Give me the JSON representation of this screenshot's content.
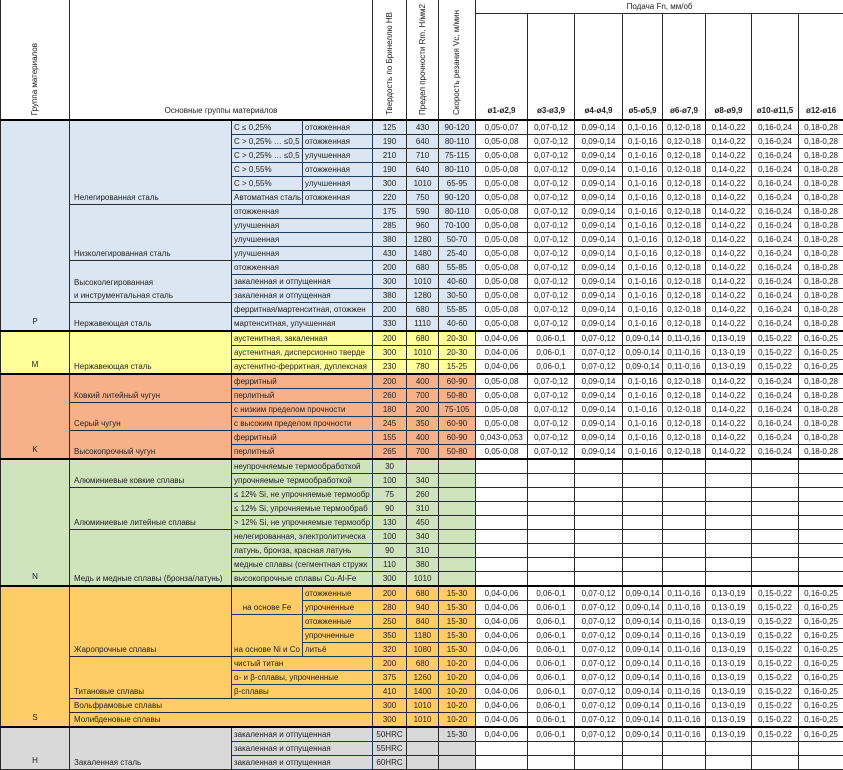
{
  "header": {
    "group_col": "Группа материалов",
    "main_col": "Основные группы материалов",
    "hb_col": "Твердость по Бринеллю HB",
    "rm_col": "Предел прочности Rm, Н/мм2",
    "vc_col": "Скорость резания Vc, м/мин",
    "feed_title": "Подача Fn, мм/об",
    "diameters": [
      "ø1-ø2,9",
      "ø3-ø3,9",
      "ø4-ø4,9",
      "ø5-ø5,9",
      "ø6-ø7,9",
      "ø8-ø9,9",
      "ø10-ø11,5",
      "ø12-ø16"
    ]
  },
  "colors": {
    "P": "#dce6f2",
    "M": "#ffff99",
    "K": "#f6b08a",
    "N": "#cfe3bd",
    "S": "#ffcc66",
    "H": "#d9d9d9"
  },
  "sections": [
    {
      "code": "P",
      "groups": [
        {
          "name": "Нелегированная сталь",
          "rows": [
            {
              "a": "C ≤ 0,25%",
              "b": "отожженная",
              "hb": "125",
              "rm": "430",
              "vc": "90-120",
              "f": [
                "0,05-0,07",
                "0,07-0,12",
                "0,09-0,14",
                "0,1-0,16",
                "0,12-0,18",
                "0,14-0,22",
                "0,16-0,24",
                "0,18-0,28"
              ]
            },
            {
              "a": "C > 0,25% … ≤0,5",
              "b": "отожженная",
              "hb": "190",
              "rm": "640",
              "vc": "80-110",
              "f": [
                "0,05-0,08",
                "0,07-0,12",
                "0,09-0,14",
                "0,1-0,16",
                "0,12-0,18",
                "0,14-0,22",
                "0,16-0,24",
                "0,18-0,28"
              ]
            },
            {
              "a": "C > 0,25% … ≤0,5",
              "b": "улучшенная",
              "hb": "210",
              "rm": "710",
              "vc": "75-115",
              "f": [
                "0,05-0,08",
                "0,07-0,12",
                "0,09-0,14",
                "0,1-0,16",
                "0,12-0,18",
                "0,14-0,22",
                "0,16-0,24",
                "0,18-0,28"
              ]
            },
            {
              "a": "C > 0,55%",
              "b": "отожженная",
              "hb": "190",
              "rm": "640",
              "vc": "80-110",
              "f": [
                "0,05-0,08",
                "0,07-0,12",
                "0,09-0,14",
                "0,1-0,16",
                "0,12-0,18",
                "0,14-0,22",
                "0,16-0,24",
                "0,18-0,28"
              ]
            },
            {
              "a": "C > 0,55%",
              "b": "улучшенная",
              "hb": "300",
              "rm": "1010",
              "vc": "65-95",
              "f": [
                "0,05-0,08",
                "0,07-0,12",
                "0,09-0,14",
                "0,1-0,16",
                "0,12-0,18",
                "0,14-0,22",
                "0,16-0,24",
                "0,18-0,28"
              ]
            },
            {
              "a": "Автоматная сталь",
              "b": "отожженная",
              "hb": "220",
              "rm": "750",
              "vc": "90-120",
              "f": [
                "0,05-0,08",
                "0,07-0,12",
                "0,09-0,14",
                "0,1-0,16",
                "0,12-0,18",
                "0,14-0,22",
                "0,16-0,24",
                "0,18-0,28"
              ]
            }
          ]
        },
        {
          "name": "Низколегированная сталь",
          "rows": [
            {
              "ab": "отожженная",
              "hb": "175",
              "rm": "590",
              "vc": "80-110",
              "f": [
                "0,05-0,08",
                "0,07-0,12",
                "0,09-0,14",
                "0,1-0,16",
                "0,12-0,18",
                "0,14-0,22",
                "0,16-0,24",
                "0,18-0,28"
              ]
            },
            {
              "ab": "улучшенная",
              "hb": "285",
              "rm": "960",
              "vc": "70-100",
              "f": [
                "0,05-0,08",
                "0,07-0,12",
                "0,09-0,14",
                "0,1-0,16",
                "0,12-0,18",
                "0,14-0,22",
                "0,16-0,24",
                "0,18-0,28"
              ]
            },
            {
              "ab": "улучшенная",
              "hb": "380",
              "rm": "1280",
              "vc": "50-70",
              "f": [
                "0,05-0,08",
                "0,07-0,12",
                "0,09-0,14",
                "0,1-0,16",
                "0,12-0,18",
                "0,14-0,22",
                "0,16-0,24",
                "0,18-0,28"
              ]
            },
            {
              "ab": "улучшенная",
              "hb": "430",
              "rm": "1480",
              "vc": "25-40",
              "f": [
                "0,05-0,08",
                "0,07-0,12",
                "0,09-0,14",
                "0,1-0,16",
                "0,12-0,18",
                "0,14-0,22",
                "0,16-0,24",
                "0,18-0,28"
              ]
            }
          ]
        },
        {
          "name": "Высоколегированная\nи инструментальная сталь",
          "rows": [
            {
              "ab": "отожженная",
              "hb": "200",
              "rm": "680",
              "vc": "55-85",
              "f": [
                "0,05-0,08",
                "0,07-0,12",
                "0,09-0,14",
                "0,1-0,16",
                "0,12-0,18",
                "0,14-0,22",
                "0,16-0,24",
                "0,18-0,28"
              ]
            },
            {
              "ab": "закаленная и отпущенная",
              "hb": "300",
              "rm": "1010",
              "vc": "40-60",
              "f": [
                "0,05-0,08",
                "0,07-0,12",
                "0,09-0,14",
                "0,1-0,16",
                "0,12-0,18",
                "0,14-0,22",
                "0,16-0,24",
                "0,18-0,28"
              ]
            },
            {
              "ab": "закаленная и отпущенная",
              "hb": "380",
              "rm": "1280",
              "vc": "30-50",
              "f": [
                "0,05-0,08",
                "0,07-0,12",
                "0,09-0,14",
                "0,1-0,16",
                "0,12-0,18",
                "0,14-0,22",
                "0,16-0,24",
                "0,18-0,28"
              ]
            }
          ]
        },
        {
          "name": "Нержавеющая сталь",
          "rows": [
            {
              "ab": "ферритная/мартенситная, отожжен",
              "hb": "200",
              "rm": "680",
              "vc": "55-85",
              "f": [
                "0,05-0,08",
                "0,07-0,12",
                "0,09-0,14",
                "0,1-0,16",
                "0,12-0,18",
                "0,14-0,22",
                "0,16-0,24",
                "0,18-0,28"
              ]
            },
            {
              "ab": "мартенситная, улучшенная",
              "hb": "330",
              "rm": "1110",
              "vc": "40-60",
              "f": [
                "0,05-0,08",
                "0,07-0,12",
                "0,09-0,14",
                "0,1-0,16",
                "0,12-0,18",
                "0,14-0,22",
                "0,16-0,24",
                "0,18-0,28"
              ]
            }
          ]
        }
      ]
    },
    {
      "code": "M",
      "groups": [
        {
          "name": "Нержавеющая сталь",
          "rows": [
            {
              "ab": "аустенитная, закаленная",
              "hb": "200",
              "rm": "680",
              "vc": "20-30",
              "f": [
                "0,04-0,06",
                "0,06-0,1",
                "0,07-0,12",
                "0,09-0,14",
                "0,11-0,16",
                "0,13-0,19",
                "0,15-0,22",
                "0,16-0,25"
              ]
            },
            {
              "ab": "аустенитная, дисперсионно тверде",
              "hb": "300",
              "rm": "1010",
              "vc": "20-30",
              "f": [
                "0,04-0,06",
                "0,06-0,1",
                "0,07-0,12",
                "0,09-0,14",
                "0,11-0,16",
                "0,13-0,19",
                "0,15-0,22",
                "0,16-0,25"
              ]
            },
            {
              "ab": "аустенитно-ферритная, дуплексная",
              "hb": "230",
              "rm": "780",
              "vc": "15-25",
              "f": [
                "0,04-0,06",
                "0,06-0,1",
                "0,07-0,12",
                "0,09-0,14",
                "0,11-0,16",
                "0,13-0,19",
                "0,15-0,22",
                "0,16-0,25"
              ]
            }
          ]
        }
      ]
    },
    {
      "code": "K",
      "groups": [
        {
          "name": "Ковкий литейный чугун",
          "rows": [
            {
              "ab": "ферритный",
              "hb": "200",
              "rm": "400",
              "vc": "60-90",
              "f": [
                "0,05-0,08",
                "0,07-0,12",
                "0,09-0,14",
                "0,1-0,16",
                "0,12-0,18",
                "0,14-0,22",
                "0,16-0,24",
                "0,18-0,28"
              ]
            },
            {
              "ab": "перлитный",
              "hb": "260",
              "rm": "700",
              "vc": "50-80",
              "f": [
                "0,05-0,08",
                "0,07-0,12",
                "0,09-0,14",
                "0,1-0,16",
                "0,12-0,18",
                "0,14-0,22",
                "0,16-0,24",
                "0,18-0,28"
              ]
            }
          ]
        },
        {
          "name": "Серый чугун",
          "rows": [
            {
              "ab": "с низким пределом прочности",
              "hb": "180",
              "rm": "200",
              "vc": "75-105",
              "f": [
                "0,05-0,08",
                "0,07-0,12",
                "0,09-0,14",
                "0,1-0,16",
                "0,12-0,18",
                "0,14-0,22",
                "0,16-0,24",
                "0,18-0,28"
              ]
            },
            {
              "ab": "с высоким пределом прочности",
              "hb": "245",
              "rm": "350",
              "vc": "60-90",
              "f": [
                "0,05-0,08",
                "0,07-0,12",
                "0,09-0,14",
                "0,1-0,16",
                "0,12-0,18",
                "0,14-0,22",
                "0,16-0,24",
                "0,18-0,28"
              ]
            }
          ]
        },
        {
          "name": "Высокопрочный чугун",
          "rows": [
            {
              "ab": "ферритный",
              "hb": "155",
              "rm": "400",
              "vc": "60-90",
              "f": [
                "0,043-0,053",
                "0,07-0,12",
                "0,09-0,14",
                "0,1-0,16",
                "0,12-0,18",
                "0,14-0,22",
                "0,16-0,24",
                "0,18-0,28"
              ]
            },
            {
              "ab": "перлитный",
              "hb": "265",
              "rm": "700",
              "vc": "50-80",
              "f": [
                "0,05-0,08",
                "0,07-0,12",
                "0,09-0,14",
                "0,1-0,16",
                "0,12-0,18",
                "0,14-0,22",
                "0,16-0,24",
                "0,18-0,28"
              ]
            }
          ]
        }
      ]
    },
    {
      "code": "N",
      "groups": [
        {
          "name": "Алюминиевые ковкие сплавы",
          "rows": [
            {
              "ab": "неупрочняемые термообработкой",
              "hb": "30"
            },
            {
              "ab": "упрочняемые термообработкой",
              "hb": "100",
              "rm": "340"
            }
          ]
        },
        {
          "name": "Алюминиевые литейные сплавы",
          "rows": [
            {
              "ab": "≤ 12% Si, не упрочняемые термообр",
              "hb": "75",
              "rm": "260"
            },
            {
              "ab": "≤ 12% Si, упрочняемые термообраб",
              "hb": "90",
              "rm": "310"
            },
            {
              "ab": "> 12% Si, не упрочняемые термообр",
              "hb": "130",
              "rm": "450"
            }
          ]
        },
        {
          "name": "Медь и медные сплавы (бронза/латунь)",
          "rows": [
            {
              "ab": "нелегированная, электролитическа",
              "hb": "100",
              "rm": "340"
            },
            {
              "ab": "латунь, бронза, красная латунь",
              "hb": "90",
              "rm": "310"
            },
            {
              "ab": "медные сплавы (сегментная стружк",
              "hb": "110",
              "rm": "380"
            },
            {
              "ab": "высокопрочные сплавы Cu-Al-Fe",
              "hb": "300",
              "rm": "1010"
            }
          ]
        }
      ]
    },
    {
      "code": "S",
      "groups": [
        {
          "name": "Жаропрочные сплавы",
          "rows": [
            {
              "a": "на основе Fe",
              "rows": [
                {
                  "b": "отожженные",
                  "hb": "200",
                  "rm": "680",
                  "vc": "15-30",
                  "f": [
                    "0,04-0,06",
                    "0,06-0,1",
                    "0,07-0,12",
                    "0,09-0,14",
                    "0,11-0,16",
                    "0,13-0,19",
                    "0,15-0,22",
                    "0,16-0,25"
                  ]
                },
                {
                  "b": "упрочненные",
                  "hb": "280",
                  "rm": "940",
                  "vc": "15-30",
                  "f": [
                    "0,04-0,06",
                    "0,06-0,1",
                    "0,07-0,12",
                    "0,09-0,14",
                    "0,11-0,16",
                    "0,13-0,19",
                    "0,15-0,22",
                    "0,16-0,25"
                  ]
                }
              ]
            },
            {
              "a": "на основе Ni и Co",
              "rows": [
                {
                  "b": "отожженные",
                  "hb": "250",
                  "rm": "840",
                  "vc": "15-30",
                  "f": [
                    "0,04-0,06",
                    "0,06-0,1",
                    "0,07-0,12",
                    "0,09-0,14",
                    "0,11-0,16",
                    "0,13-0,19",
                    "0,15-0,22",
                    "0,16-0,25"
                  ]
                },
                {
                  "b": "упрочненные",
                  "hb": "350",
                  "rm": "1180",
                  "vc": "15-30",
                  "f": [
                    "0,04-0,06",
                    "0,06-0,1",
                    "0,07-0,12",
                    "0,09-0,14",
                    "0,11-0,16",
                    "0,13-0,19",
                    "0,15-0,22",
                    "0,16-0,25"
                  ]
                },
                {
                  "b": "литьё",
                  "hb": "320",
                  "rm": "1080",
                  "vc": "15-30",
                  "f": [
                    "0,04-0,06",
                    "0,06-0,1",
                    "0,07-0,12",
                    "0,09-0,14",
                    "0,11-0,16",
                    "0,13-0,19",
                    "0,15-0,22",
                    "0,16-0,25"
                  ]
                }
              ]
            }
          ]
        },
        {
          "name": "Титановые сплавы",
          "rows": [
            {
              "ab": "чистый титан",
              "hb": "200",
              "rm": "680",
              "vc": "10-20",
              "f": [
                "0,04-0,06",
                "0,06-0,1",
                "0,07-0,12",
                "0,09-0,14",
                "0,11-0,16",
                "0,13-0,19",
                "0,15-0,22",
                "0,16-0,25"
              ]
            },
            {
              "ab": "α- и β-сплавы, упрочненные",
              "hb": "375",
              "rm": "1260",
              "vc": "10-20",
              "f": [
                "0,04-0,06",
                "0,06-0,1",
                "0,07-0,12",
                "0,09-0,14",
                "0,11-0,16",
                "0,13-0,19",
                "0,15-0,22",
                "0,16-0,25"
              ]
            },
            {
              "ab": "β-сплавы",
              "hb": "410",
              "rm": "1400",
              "vc": "10-20",
              "f": [
                "0,04-0,06",
                "0,06-0,1",
                "0,07-0,12",
                "0,09-0,14",
                "0,11-0,16",
                "0,13-0,19",
                "0,15-0,22",
                "0,16-0,25"
              ]
            }
          ]
        },
        {
          "name": "Вольфрамовые сплавы",
          "hb": "300",
          "rm": "1010",
          "vc": "10-20",
          "f": [
            "0,04-0,06",
            "0,06-0,1",
            "0,07-0,12",
            "0,09-0,14",
            "0,11-0,16",
            "0,13-0,19",
            "0,15-0,22",
            "0,16-0,25"
          ]
        },
        {
          "name": "Молибденовые сплавы",
          "hb": "300",
          "rm": "1010",
          "vc": "10-20",
          "f": [
            "0,04-0,06",
            "0,06-0,1",
            "0,07-0,12",
            "0,09-0,14",
            "0,11-0,16",
            "0,13-0,19",
            "0,15-0,22",
            "0,16-0,25"
          ]
        }
      ]
    },
    {
      "code": "H",
      "groups": [
        {
          "name": "Закаленная сталь",
          "rows": [
            {
              "ab": "закаленная и отпущенная",
              "hb": "50HRC",
              "vc": "15-30",
              "f": [
                "0,04-0,06",
                "0,06-0,1",
                "0,07-0,12",
                "0,09-0,14",
                "0,11-0,16",
                "0,13-0,19",
                "0,15-0,22",
                "0,16-0,25"
              ]
            },
            {
              "ab": "закаленная и отпущенная",
              "hb": "55HRC"
            },
            {
              "ab": "закаленная и отпущенная",
              "hb": "60HRC"
            }
          ]
        }
      ]
    }
  ]
}
